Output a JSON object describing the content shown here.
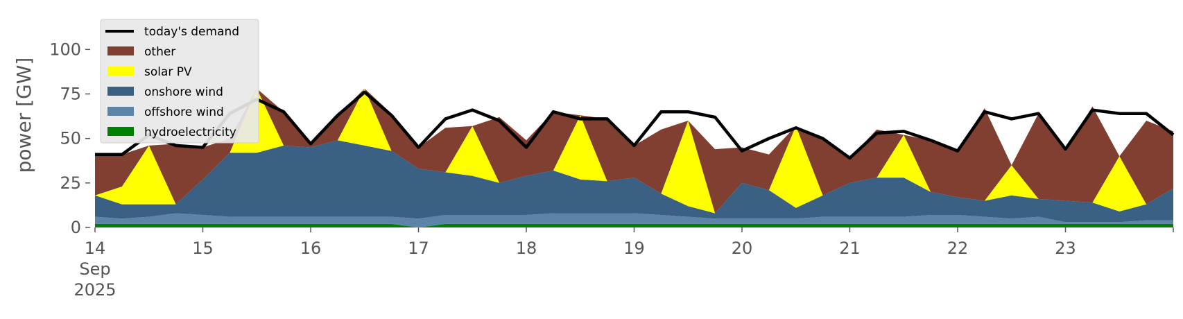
{
  "chart_data": {
    "type": "area",
    "ylabel": "power [GW]",
    "ylim": [
      0,
      120
    ],
    "yticks": [
      0,
      25,
      50,
      75,
      100
    ],
    "xlim": [
      "2025-09-14",
      "2025-09-24"
    ],
    "x_tick_labels": [
      {
        "day": "14",
        "month": "Sep",
        "year": "2025"
      },
      {
        "day": "15"
      },
      {
        "day": "16"
      },
      {
        "day": "17"
      },
      {
        "day": "18"
      },
      {
        "day": "19"
      },
      {
        "day": "20"
      },
      {
        "day": "21"
      },
      {
        "day": "22"
      },
      {
        "day": "23"
      }
    ],
    "grid": false,
    "stacked": true,
    "legend_position": "top-left",
    "x": [
      "2025-09-14 00:00",
      "2025-09-14 06:00",
      "2025-09-14 12:00",
      "2025-09-14 18:00",
      "2025-09-15 00:00",
      "2025-09-15 06:00",
      "2025-09-15 12:00",
      "2025-09-15 18:00",
      "2025-09-16 00:00",
      "2025-09-16 06:00",
      "2025-09-16 12:00",
      "2025-09-16 18:00",
      "2025-09-17 00:00",
      "2025-09-17 06:00",
      "2025-09-17 12:00",
      "2025-09-17 18:00",
      "2025-09-18 00:00",
      "2025-09-18 06:00",
      "2025-09-18 12:00",
      "2025-09-18 18:00",
      "2025-09-19 00:00",
      "2025-09-19 06:00",
      "2025-09-19 12:00",
      "2025-09-19 18:00",
      "2025-09-20 00:00",
      "2025-09-20 06:00",
      "2025-09-20 12:00",
      "2025-09-20 18:00",
      "2025-09-21 00:00",
      "2025-09-21 06:00",
      "2025-09-21 12:00",
      "2025-09-21 18:00",
      "2025-09-22 00:00",
      "2025-09-22 06:00",
      "2025-09-22 12:00",
      "2025-09-22 18:00",
      "2025-09-23 00:00",
      "2025-09-23 06:00",
      "2025-09-23 12:00",
      "2025-09-23 18:00",
      "2025-09-24 00:00"
    ],
    "series": [
      {
        "name": "hydroelectricity",
        "color": "#008000",
        "values": [
          2,
          2,
          2,
          2,
          2,
          2,
          2,
          2,
          2,
          2,
          2,
          2,
          0,
          2,
          2,
          2,
          2,
          2,
          2,
          2,
          2,
          2,
          2,
          2,
          2,
          2,
          2,
          2,
          2,
          2,
          2,
          2,
          2,
          2,
          2,
          2,
          2,
          2,
          2,
          2,
          2
        ]
      },
      {
        "name": "offshore wind",
        "color": "#5b84a8",
        "values": [
          4,
          3,
          4,
          6,
          5,
          4,
          4,
          4,
          4,
          4,
          4,
          4,
          5,
          5,
          5,
          5,
          5,
          6,
          6,
          6,
          6,
          5,
          4,
          3,
          3,
          3,
          3,
          4,
          4,
          4,
          4,
          5,
          5,
          4,
          3,
          4,
          1,
          1,
          1,
          2,
          2
        ]
      },
      {
        "name": "onshore wind",
        "color": "#3a6183",
        "values": [
          12,
          8,
          7,
          5,
          20,
          36,
          36,
          40,
          39,
          43,
          40,
          37,
          28,
          24,
          22,
          18,
          22,
          24,
          19,
          18,
          20,
          12,
          6,
          3,
          20,
          16,
          6,
          12,
          19,
          22,
          22,
          13,
          10,
          9,
          13,
          10,
          12,
          11,
          6,
          9,
          18
        ]
      },
      {
        "name": "solar PV",
        "color": "#ffff00",
        "values": [
          0,
          10,
          33,
          0,
          0,
          0,
          36,
          0,
          0,
          0,
          32,
          0,
          0,
          0,
          28,
          0,
          0,
          0,
          36,
          0,
          0,
          0,
          48,
          0,
          0,
          0,
          46,
          0,
          0,
          0,
          24,
          0,
          0,
          0,
          17,
          0,
          0,
          0,
          31,
          0,
          0
        ]
      },
      {
        "name": "other",
        "color": "#803f30",
        "values": [
          23,
          18,
          0,
          34,
          18,
          8,
          0,
          19,
          1,
          14,
          0,
          21,
          12,
          25,
          0,
          37,
          20,
          33,
          0,
          35,
          18,
          36,
          0,
          36,
          20,
          20,
          0,
          31,
          14,
          27,
          0,
          29,
          26,
          52,
          0,
          48,
          29,
          54,
          0,
          47,
          32
        ]
      }
    ],
    "demand": {
      "name": "today's demand",
      "color": "#000000",
      "values": [
        41,
        41,
        52,
        46,
        45,
        64,
        72,
        65,
        47,
        63,
        76,
        63,
        45,
        61,
        66,
        60,
        45,
        65,
        61,
        61,
        46,
        65,
        65,
        62,
        43,
        50,
        56,
        50,
        39,
        53,
        54,
        49,
        43,
        65,
        61,
        64,
        44,
        66,
        64,
        64,
        52
      ]
    }
  }
}
